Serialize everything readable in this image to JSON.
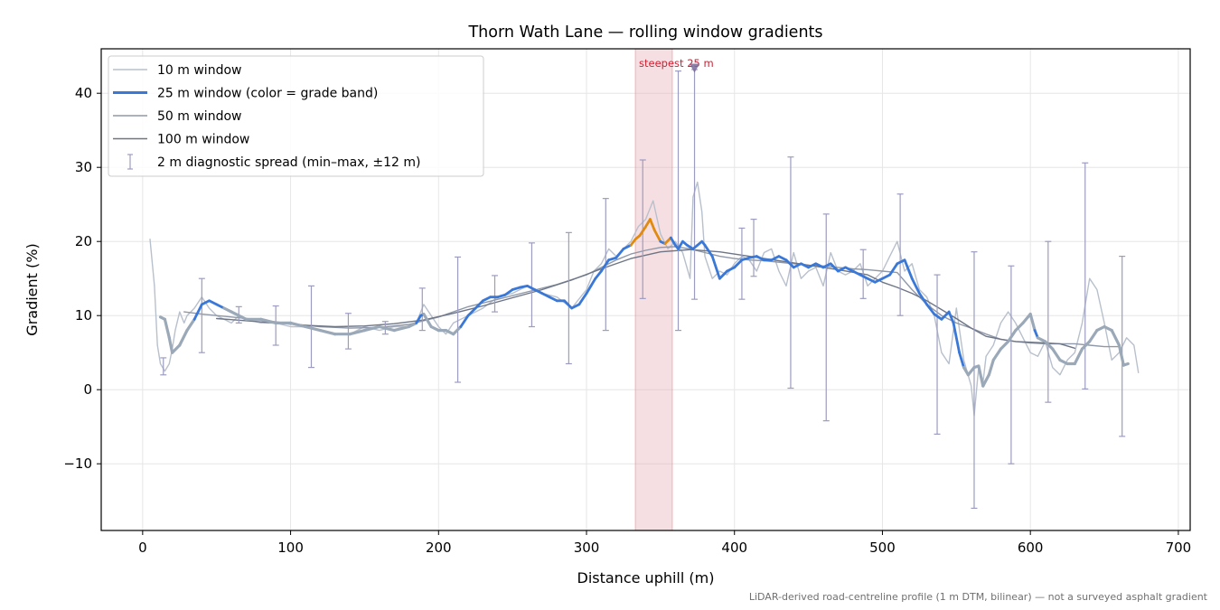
{
  "chart_data": {
    "type": "line",
    "title": "Thorn Wath Lane — rolling window gradients",
    "xlabel": "Distance uphill (m)",
    "ylabel": "Gradient (%)",
    "xlim": [
      -28,
      708
    ],
    "ylim": [
      -19,
      46
    ],
    "xticks": [
      0,
      100,
      200,
      300,
      400,
      500,
      600,
      700
    ],
    "yticks": [
      -10,
      0,
      10,
      20,
      30,
      40
    ],
    "xtick_labels": [
      "0",
      "100",
      "200",
      "300",
      "400",
      "500",
      "600",
      "700"
    ],
    "ytick_labels": [
      "−10",
      "0",
      "10",
      "20",
      "30",
      "40"
    ],
    "grid": true,
    "legend_position": "top-left",
    "caption": "LiDAR-derived road-centreline profile (1 m DTM, bilinear) — not a surveyed asphalt gradient",
    "annotation": {
      "label": "steepest 25 m",
      "marker_x": 373,
      "marker_y": 43.5,
      "span_x": [
        333,
        358
      ],
      "color": "#cc2233"
    },
    "grade_band_colors": {
      "low": "#9aa8b8",
      "moderate": "#3a78d8",
      "steep": "#e08a10"
    },
    "series": [
      {
        "name": "10 m window",
        "color": "#b8c0cc",
        "x": [
          5,
          8,
          10,
          12,
          15,
          18,
          20,
          22,
          25,
          28,
          30,
          35,
          40,
          45,
          50,
          55,
          60,
          65,
          70,
          80,
          90,
          100,
          110,
          120,
          130,
          140,
          150,
          160,
          170,
          180,
          185,
          190,
          195,
          200,
          205,
          210,
          220,
          230,
          240,
          250,
          260,
          270,
          280,
          290,
          300,
          305,
          310,
          315,
          320,
          325,
          330,
          335,
          340,
          345,
          350,
          355,
          360,
          365,
          370,
          372,
          375,
          378,
          380,
          385,
          390,
          395,
          400,
          405,
          410,
          415,
          420,
          425,
          430,
          435,
          440,
          445,
          450,
          455,
          460,
          465,
          470,
          475,
          480,
          485,
          490,
          495,
          500,
          505,
          510,
          515,
          520,
          525,
          530,
          535,
          540,
          545,
          550,
          555,
          560,
          562,
          565,
          568,
          570,
          575,
          580,
          585,
          590,
          595,
          600,
          605,
          610,
          615,
          620,
          625,
          630,
          635,
          640,
          645,
          650,
          655,
          660,
          665,
          670,
          673
        ],
        "y": [
          20.3,
          14,
          6,
          3.5,
          2.5,
          3.5,
          5.5,
          8,
          10.5,
          9,
          10,
          11,
          12.5,
          11,
          10,
          9.5,
          9,
          10,
          9.5,
          9,
          9,
          8.5,
          8.5,
          8,
          7.5,
          7.5,
          8.5,
          8,
          8.5,
          8.5,
          9,
          11.5,
          10,
          8.5,
          7.5,
          9,
          10,
          11,
          12.5,
          13,
          14,
          13,
          12.5,
          11,
          13.5,
          16,
          17,
          19,
          18,
          19,
          20,
          22,
          23,
          25.5,
          21,
          19,
          20,
          18.5,
          15,
          26,
          28,
          24,
          18,
          15,
          16,
          15.5,
          17,
          18,
          17.5,
          16,
          18.5,
          19,
          16,
          14,
          18.5,
          15,
          16,
          16.5,
          14,
          18.5,
          16,
          15.5,
          16,
          17,
          14,
          15,
          16,
          18,
          20,
          16,
          17,
          13.5,
          12.5,
          10,
          5,
          3.5,
          11,
          4,
          0.5,
          -3.5,
          3,
          1,
          4.5,
          6,
          9,
          10.5,
          9,
          7,
          5,
          4.5,
          6.5,
          3,
          2,
          4,
          5,
          9,
          15,
          13.5,
          9,
          4,
          5,
          7,
          6,
          2.3
        ]
      },
      {
        "name": "50 m window",
        "color": "#8f98a8",
        "x": [
          28,
          40,
          60,
          80,
          100,
          120,
          140,
          160,
          180,
          200,
          220,
          240,
          260,
          280,
          300,
          310,
          320,
          330,
          340,
          350,
          360,
          370,
          380,
          390,
          400,
          410,
          420,
          430,
          440,
          450,
          460,
          470,
          480,
          490,
          500,
          510,
          520,
          530,
          540,
          550,
          560,
          570,
          580,
          590,
          600,
          610,
          620,
          630,
          640,
          650,
          660
        ],
        "y": [
          10.5,
          10.2,
          9.8,
          9.4,
          8.9,
          8.5,
          8.3,
          8.4,
          8.8,
          9.8,
          11.2,
          12.2,
          13.2,
          14.2,
          15.5,
          16.5,
          17.5,
          18.3,
          18.8,
          19.2,
          19.3,
          19,
          18.5,
          18,
          17.7,
          17.5,
          17.4,
          17.2,
          17,
          16.8,
          16.7,
          16.5,
          16.3,
          16.2,
          16,
          15.8,
          13.5,
          11.5,
          10,
          9,
          8.3,
          7.5,
          6.8,
          6.5,
          6.3,
          6.2,
          6.2,
          6.2,
          6,
          5.8,
          5.8
        ]
      },
      {
        "name": "100 m window",
        "color": "#6d7586",
        "x": [
          50,
          70,
          90,
          110,
          130,
          150,
          170,
          190,
          210,
          230,
          250,
          270,
          290,
          310,
          330,
          350,
          370,
          390,
          410,
          430,
          450,
          470,
          490,
          500,
          510,
          520,
          530,
          540,
          550,
          560,
          570,
          580,
          590,
          600,
          610,
          620,
          630
        ],
        "y": [
          9.6,
          9.3,
          9,
          8.7,
          8.5,
          8.6,
          8.9,
          9.4,
          10.3,
          11.3,
          12.4,
          13.5,
          14.8,
          16.3,
          17.7,
          18.6,
          18.9,
          18.6,
          18,
          17.4,
          16.8,
          16.2,
          15.5,
          14.5,
          13.8,
          13,
          12,
          10.8,
          9.6,
          8.3,
          7.2,
          6.8,
          6.5,
          6.4,
          6.3,
          6.2,
          5.6
        ]
      },
      {
        "name": "25 m window (color = grade band)",
        "color": "#3a78d8",
        "x": [
          12,
          15,
          18,
          20,
          25,
          30,
          35,
          40,
          45,
          50,
          55,
          60,
          65,
          70,
          80,
          90,
          100,
          110,
          120,
          130,
          140,
          150,
          160,
          170,
          180,
          185,
          188,
          190,
          195,
          200,
          205,
          210,
          215,
          220,
          225,
          230,
          235,
          240,
          245,
          250,
          255,
          260,
          265,
          270,
          275,
          280,
          285,
          290,
          295,
          300,
          303,
          306,
          310,
          315,
          320,
          325,
          330,
          333,
          336,
          340,
          343,
          346,
          350,
          353,
          357,
          360,
          362,
          365,
          368,
          372,
          375,
          378,
          380,
          385,
          390,
          395,
          400,
          405,
          410,
          415,
          420,
          425,
          430,
          435,
          440,
          445,
          450,
          455,
          460,
          465,
          470,
          475,
          480,
          485,
          490,
          495,
          500,
          505,
          510,
          515,
          520,
          525,
          530,
          535,
          540,
          545,
          548,
          552,
          555,
          558,
          562,
          565,
          568,
          572,
          575,
          580,
          585,
          590,
          595,
          600,
          603,
          605,
          610,
          615,
          620,
          625,
          630,
          635,
          640,
          645,
          650,
          655,
          660,
          663,
          666
        ],
        "y": [
          9.8,
          9.5,
          7,
          5,
          6,
          8,
          9.5,
          11.5,
          12,
          11.5,
          11,
          10.5,
          10,
          9.5,
          9.5,
          9,
          9,
          8.5,
          8,
          7.5,
          7.5,
          8,
          8.5,
          8,
          8.5,
          9,
          10,
          10.2,
          8.5,
          8,
          8,
          7.5,
          8.5,
          10,
          11,
          12,
          12.5,
          12.5,
          12.8,
          13.5,
          13.8,
          14,
          13.5,
          13,
          12.5,
          12,
          12,
          11,
          11.5,
          13,
          14,
          15,
          16,
          17.5,
          17.8,
          19,
          19.5,
          20.3,
          20.8,
          22,
          23,
          21.5,
          20,
          19.7,
          20.5,
          19.5,
          19,
          20,
          19.5,
          19,
          19.5,
          20,
          19.5,
          18,
          15,
          16,
          16.5,
          17.5,
          17.8,
          18,
          17.5,
          17.5,
          18,
          17.5,
          16.5,
          17,
          16.5,
          17,
          16.5,
          17,
          16,
          16.5,
          16,
          15.5,
          15,
          14.5,
          15,
          15.5,
          17,
          17.5,
          15,
          13,
          11.5,
          10.2,
          9.5,
          10.5,
          9,
          5,
          3,
          2,
          3,
          3.2,
          0.5,
          2,
          4,
          5.5,
          6.5,
          8,
          9,
          10.2,
          8,
          7,
          6.5,
          5.5,
          4,
          3.5,
          3.5,
          5.5,
          6.5,
          8,
          8.5,
          8,
          6,
          3.3,
          3.5
        ],
        "grade_band": [
          "low",
          "low",
          "low",
          "low",
          "low",
          "low",
          "low",
          "moderate",
          "moderate",
          "moderate",
          "moderate",
          "low",
          "low",
          "low",
          "low",
          "low",
          "low",
          "low",
          "low",
          "low",
          "low",
          "low",
          "low",
          "low",
          "low",
          "low",
          "moderate",
          "moderate",
          "low",
          "low",
          "low",
          "low",
          "low",
          "moderate",
          "moderate",
          "moderate",
          "moderate",
          "moderate",
          "moderate",
          "moderate",
          "moderate",
          "moderate",
          "moderate",
          "moderate",
          "moderate",
          "moderate",
          "moderate",
          "moderate",
          "moderate",
          "moderate",
          "moderate",
          "moderate",
          "moderate",
          "moderate",
          "moderate",
          "moderate",
          "moderate",
          "steep",
          "steep",
          "steep",
          "steep",
          "steep",
          "steep",
          "moderate",
          "steep",
          "moderate",
          "moderate",
          "moderate",
          "moderate",
          "moderate",
          "moderate",
          "moderate",
          "moderate",
          "moderate",
          "moderate",
          "moderate",
          "moderate",
          "moderate",
          "moderate",
          "moderate",
          "moderate",
          "moderate",
          "moderate",
          "moderate",
          "moderate",
          "moderate",
          "moderate",
          "moderate",
          "moderate",
          "moderate",
          "moderate",
          "moderate",
          "moderate",
          "moderate",
          "moderate",
          "moderate",
          "moderate",
          "moderate",
          "moderate",
          "moderate",
          "moderate",
          "moderate",
          "moderate",
          "moderate",
          "moderate",
          "moderate",
          "moderate",
          "moderate",
          "moderate",
          "low",
          "low",
          "low",
          "low",
          "low",
          "low",
          "low",
          "low",
          "low",
          "low",
          "low",
          "low",
          "moderate",
          "low",
          "low",
          "low",
          "low",
          "low",
          "low",
          "low",
          "low",
          "low",
          "low",
          "low",
          "low",
          "low",
          "low"
        ]
      },
      {
        "name": "2 m diagnostic spread (min–max, ±12 m)",
        "type": "errorbar",
        "color": "#9c9cc0",
        "x": [
          14,
          40,
          65,
          90,
          114,
          139,
          164,
          189,
          213,
          238,
          263,
          288,
          313,
          338,
          362,
          373,
          405,
          413,
          438,
          462,
          487,
          512,
          537,
          562,
          587,
          612,
          637,
          662
        ],
        "low": [
          2,
          5,
          9,
          6,
          3,
          5.5,
          7.5,
          8,
          1,
          10.5,
          8.5,
          3.5,
          8,
          12.3,
          8,
          12.2,
          12.2,
          15.3,
          0.2,
          -4.2,
          12.3,
          10,
          -6,
          -16,
          -10,
          -1.7,
          0.1,
          -6.3
        ],
        "high": [
          4.3,
          15,
          11.2,
          11.3,
          14,
          10.3,
          9.2,
          13.7,
          17.9,
          15.4,
          19.8,
          21.2,
          25.8,
          31,
          43,
          43.2,
          21.8,
          23,
          31.4,
          23.7,
          18.9,
          26.4,
          15.5,
          18.6,
          16.7,
          20,
          30.6,
          18
        ]
      }
    ]
  }
}
